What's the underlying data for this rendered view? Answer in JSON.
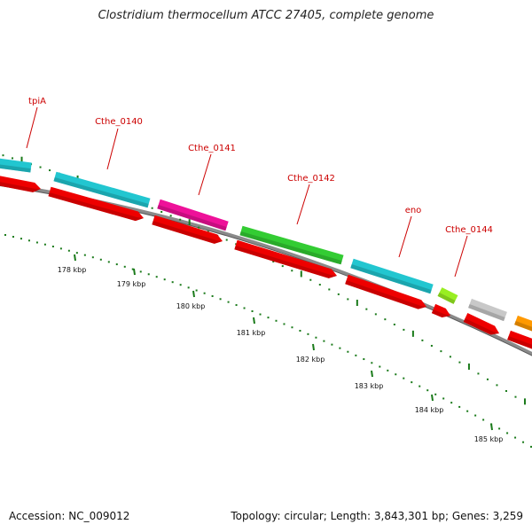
{
  "title": "Clostridium thermocellum ATCC 27405, complete genome",
  "footer": {
    "accession": "Accession: NC_009012",
    "summary": "Topology: circular; Length: 3,843,301 bp; Genes: 3,259"
  },
  "genes": [
    {
      "name": "tpiA",
      "color": "#22c6d0"
    },
    {
      "name": "Cthe_0140",
      "color": "#22c6d0"
    },
    {
      "name": "Cthe_0141",
      "color": "#ee1199"
    },
    {
      "name": "Cthe_0142",
      "color": "#33cc33"
    },
    {
      "name": "eno",
      "color": "#22c6d0"
    },
    {
      "name": "Cthe_0144",
      "color": "#99ee22"
    },
    {
      "name": "",
      "color": "#c8c8c8"
    },
    {
      "name": "",
      "color": "#ff9900"
    }
  ],
  "cds_color": "#ee0000",
  "kbp_labels": [
    "178 kbp",
    "179 kbp",
    "180 kbp",
    "181 kbp",
    "182 kbp",
    "183 kbp",
    "184 kbp",
    "185 kbp"
  ]
}
